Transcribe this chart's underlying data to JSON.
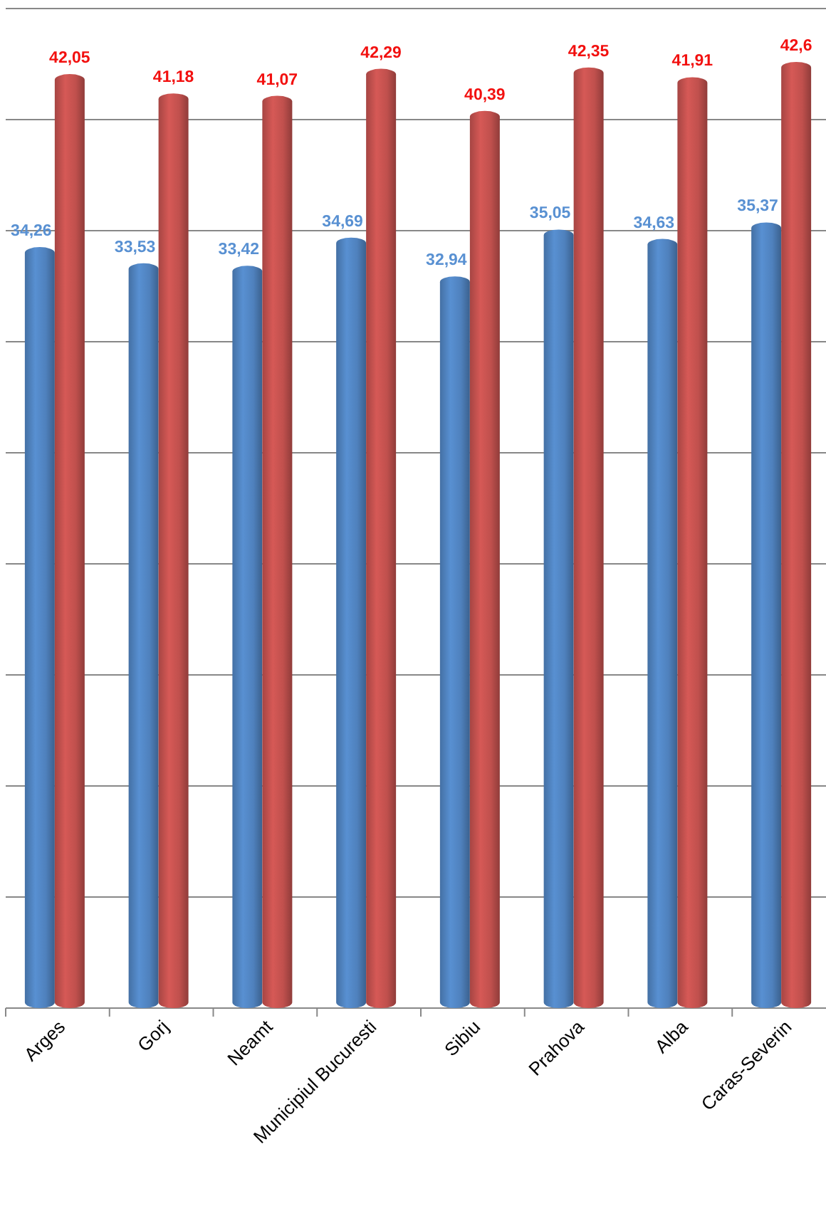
{
  "chart_data": {
    "type": "bar",
    "categories": [
      "Arges",
      "Gorj",
      "Neamt",
      "Municipiul Bucuresti",
      "Sibiu",
      "Prahova",
      "Alba",
      "Caras-Severin"
    ],
    "series": [
      {
        "color": "#4f81bd",
        "values": [
          34.26,
          33.53,
          33.42,
          34.69,
          32.94,
          35.05,
          34.63,
          35.37
        ],
        "value_labels": [
          "34,26",
          "33,53",
          "33,42",
          "34,69",
          "32,94",
          "35,05",
          "34,63",
          "35,37"
        ]
      },
      {
        "color": "#c0504d",
        "values": [
          42.05,
          41.18,
          41.07,
          42.29,
          40.39,
          42.35,
          41.91,
          42.6
        ],
        "value_labels": [
          "42,05",
          "41,18",
          "41,07",
          "42,29",
          "40,39",
          "42,35",
          "41,91",
          "42,6"
        ]
      }
    ],
    "ylim": [
      0,
      45
    ],
    "yticks": [
      {
        "value": 0,
        "label": null
      },
      {
        "value": 5,
        "label": null
      },
      {
        "value": 10,
        "label": null
      },
      {
        "value": 15,
        "label": null
      },
      {
        "value": 20,
        "label": null
      },
      {
        "value": 25,
        "label": null
      },
      {
        "value": 30,
        "label": null
      },
      {
        "value": 35,
        "label": null
      },
      {
        "value": 40,
        "label": null
      },
      {
        "value": 45,
        "label": null
      }
    ],
    "grid": "y",
    "tick_labels": "x"
  }
}
